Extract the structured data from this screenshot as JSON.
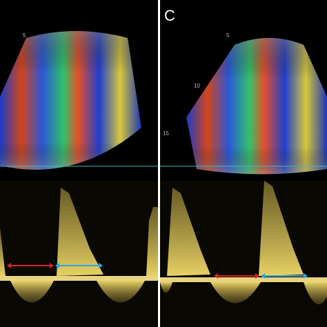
{
  "panels": [
    {
      "depth_labels": [
        "5"
      ]
    },
    {
      "label": "C",
      "depth_labels": [
        "5",
        "10",
        "15"
      ]
    }
  ]
}
